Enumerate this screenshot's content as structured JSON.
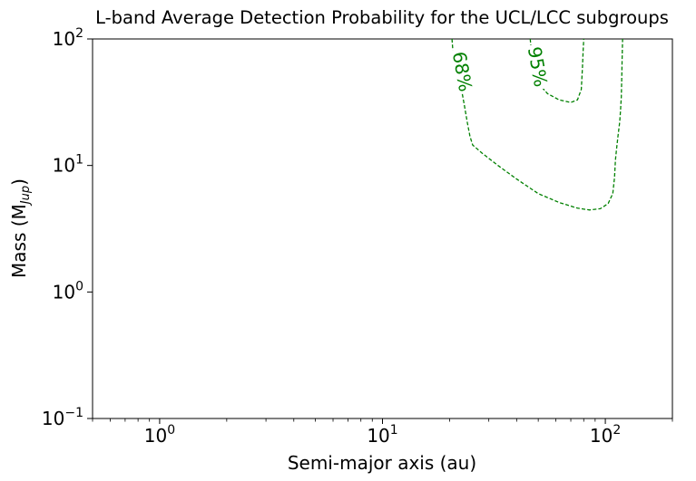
{
  "chart_data": {
    "type": "contour",
    "title": "L-band Average Detection Probability for the UCL/LCC subgroups",
    "xlabel": "Semi-major axis (au)",
    "ylabel_main": "Mass (M",
    "ylabel_sub": "Jup",
    "ylabel_close": ")",
    "x_scale": "log",
    "y_scale": "log",
    "xlim": [
      0.5,
      200
    ],
    "ylim": [
      0.1,
      100
    ],
    "grid": false,
    "x_ticks": [
      {
        "value": 1,
        "base": "10",
        "exp": "0"
      },
      {
        "value": 10,
        "base": "10",
        "exp": "1"
      },
      {
        "value": 100,
        "base": "10",
        "exp": "2"
      }
    ],
    "y_ticks": [
      {
        "value": 0.1,
        "base": "10",
        "exp": "−1"
      },
      {
        "value": 1,
        "base": "10",
        "exp": "0"
      },
      {
        "value": 10,
        "base": "10",
        "exp": "1"
      },
      {
        "value": 100,
        "base": "10",
        "exp": "2"
      }
    ],
    "line_color": "#008000",
    "contours": [
      {
        "label": "68%",
        "level": 0.68,
        "label_at": {
          "x": 22.5,
          "y": 55
        },
        "points": [
          [
            20.5,
            100
          ],
          [
            20.7,
            80
          ],
          [
            21.5,
            60
          ],
          [
            22.5,
            42
          ],
          [
            23.3,
            30
          ],
          [
            24.0,
            22
          ],
          [
            24.7,
            17
          ],
          [
            25.4,
            14.5
          ],
          [
            28,
            12.5
          ],
          [
            33,
            10
          ],
          [
            40,
            7.8
          ],
          [
            50,
            6.0
          ],
          [
            62,
            5.1
          ],
          [
            75,
            4.6
          ],
          [
            85,
            4.45
          ],
          [
            95,
            4.55
          ],
          [
            103,
            5.0
          ],
          [
            108,
            6.0
          ],
          [
            110,
            8.0
          ],
          [
            111,
            11.0
          ],
          [
            112,
            13
          ],
          [
            114,
            17
          ],
          [
            116,
            22
          ],
          [
            117,
            27
          ],
          [
            118,
            35
          ],
          [
            118.5,
            50
          ],
          [
            119,
            70
          ],
          [
            119.5,
            100
          ]
        ]
      },
      {
        "label": "95%",
        "level": 0.95,
        "label_at": {
          "x": 49,
          "y": 60
        },
        "points": [
          [
            46,
            100
          ],
          [
            46.5,
            82
          ],
          [
            48,
            58
          ],
          [
            51,
            43
          ],
          [
            55,
            37
          ],
          [
            62,
            33
          ],
          [
            70,
            31.5
          ],
          [
            75,
            33
          ],
          [
            78,
            40
          ],
          [
            79,
            60
          ],
          [
            79.5,
            80
          ],
          [
            80,
            100
          ]
        ]
      }
    ]
  }
}
